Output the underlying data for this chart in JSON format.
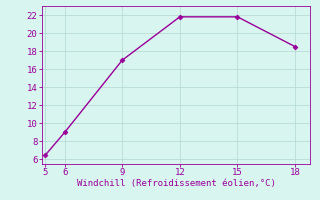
{
  "x": [
    5,
    6,
    9,
    12,
    15,
    18
  ],
  "y": [
    6.5,
    9.0,
    17.0,
    21.8,
    21.8,
    18.5
  ],
  "line_color": "#990099",
  "marker": "D",
  "marker_size": 2.5,
  "bg_color": "#d9f5f0",
  "grid_color": "#b8ddd8",
  "xlabel": "Windchill (Refroidissement éolien,°C)",
  "xlabel_color": "#990099",
  "xlabel_fontsize": 6.5,
  "xlim": [
    4.8,
    18.8
  ],
  "ylim": [
    5.5,
    23
  ],
  "xticks": [
    5,
    6,
    9,
    12,
    15,
    18
  ],
  "yticks": [
    6,
    8,
    10,
    12,
    14,
    16,
    18,
    20,
    22
  ],
  "tick_color": "#990099",
  "tick_fontsize": 6.5,
  "line_width": 1.0,
  "spine_color": "#990099"
}
